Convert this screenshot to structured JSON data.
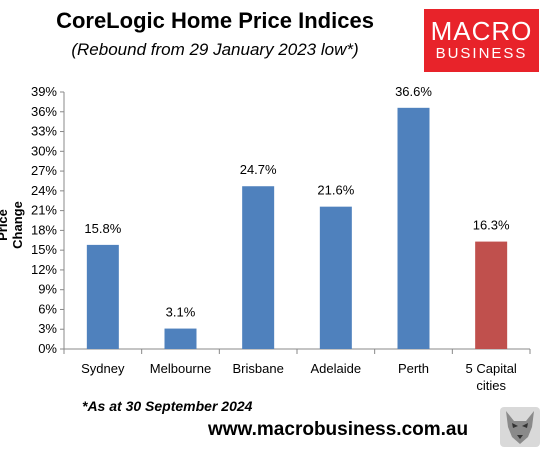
{
  "header": {
    "title": "CoreLogic Home Price Indices",
    "subtitle": "(Rebound from 29 January 2023 low*)"
  },
  "logo": {
    "line1": "MACRO",
    "line2": "BUSINESS",
    "color": "#e8232a"
  },
  "footer": {
    "note": "*As at 30 September 2024",
    "website": "www.macrobusiness.com.au"
  },
  "chart_data": {
    "type": "bar",
    "title": "CoreLogic Home Price Indices",
    "subtitle": "(Rebound from 29 January 2023 low*)",
    "xlabel": "",
    "ylabel": "Price Change",
    "ylim": [
      0,
      39
    ],
    "yticks": [
      "0%",
      "3%",
      "6%",
      "9%",
      "12%",
      "15%",
      "18%",
      "21%",
      "24%",
      "27%",
      "30%",
      "33%",
      "36%",
      "39%"
    ],
    "categories": [
      "Sydney",
      "Melbourne",
      "Brisbane",
      "Adelaide",
      "Perth",
      "5 Capital cities"
    ],
    "values": [
      15.8,
      3.1,
      24.7,
      21.6,
      36.6,
      16.3
    ],
    "data_labels": [
      "15.8%",
      "3.1%",
      "24.7%",
      "21.6%",
      "36.6%",
      "16.3%"
    ],
    "colors": [
      "#4f81bd",
      "#4f81bd",
      "#4f81bd",
      "#4f81bd",
      "#4f81bd",
      "#c0504d"
    ],
    "grid": false,
    "legend": "none"
  }
}
